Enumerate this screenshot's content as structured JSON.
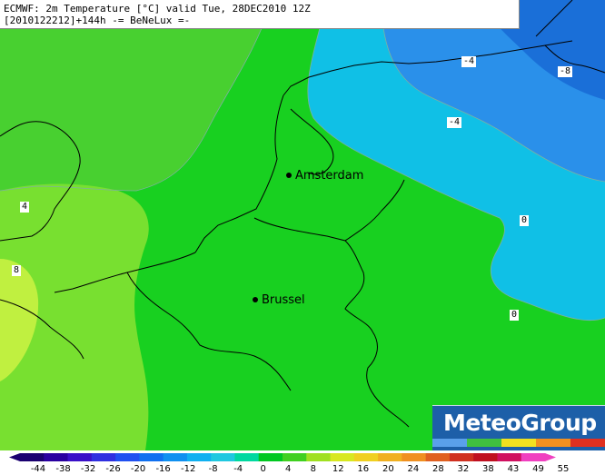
{
  "header": {
    "line1": "ECMWF: 2m Temperature [°C] valid Tue, 28DEC2010 12Z",
    "line2": "[2010122212]+144h -= BeNeLux =-"
  },
  "cities": [
    {
      "name": "Amsterdam"
    },
    {
      "name": "Brussel"
    }
  ],
  "contour_labels": [
    "-4",
    "-8",
    "-4",
    "4",
    "8",
    "0",
    "0"
  ],
  "logo": {
    "text": "MeteoGroup"
  },
  "colorbar": {
    "ticks": [
      "-44",
      "-38",
      "-32",
      "-26",
      "-20",
      "-16",
      "-12",
      "-8",
      "-4",
      "0",
      "4",
      "8",
      "12",
      "16",
      "20",
      "24",
      "28",
      "32",
      "38",
      "43",
      "49",
      "55"
    ],
    "colors": [
      "#1a0070",
      "#2a00a0",
      "#3a10c8",
      "#3030e0",
      "#2050f0",
      "#1070f0",
      "#1090f0",
      "#10b0f0",
      "#20c8e0",
      "#00d8a0",
      "#00c820",
      "#40d020",
      "#a0e020",
      "#d8e820",
      "#f0d020",
      "#f0b020",
      "#f09020",
      "#e06020",
      "#d03020",
      "#c01020",
      "#d01060",
      "#f040c0"
    ]
  },
  "field_colors": {
    "cold_dark": "#1a6fd8",
    "cold_mid": "#2a90ea",
    "cold_light": "#10c0e6",
    "zero_green": "#10c850",
    "green": "#18d020",
    "yellow_green": "#78e030",
    "light_yellow": "#c0f040",
    "sea_green": "#48d030"
  }
}
